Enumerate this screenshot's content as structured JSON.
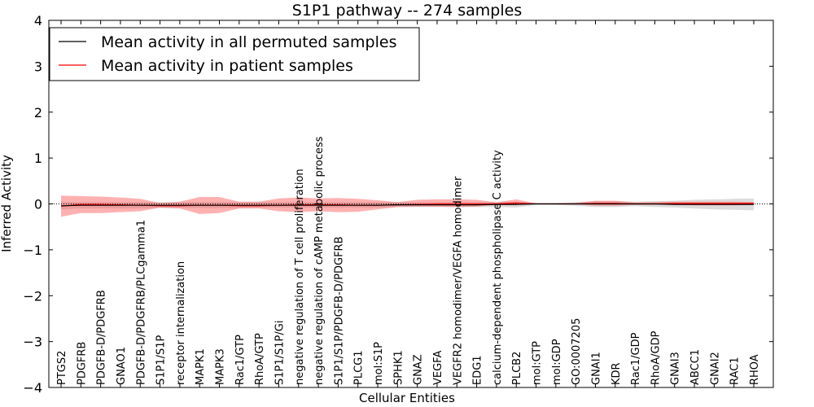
{
  "chart_data": {
    "type": "line",
    "title": "S1P1 pathway -- 274 samples",
    "xlabel": "Cellular Entities",
    "ylabel": "Inferred Activity",
    "ylim": [
      -4,
      4
    ],
    "yticks": [
      -4,
      -3,
      -2,
      -1,
      0,
      1,
      2,
      3,
      4
    ],
    "ytick_labels": [
      "−4",
      "−3",
      "−2",
      "−1",
      "0",
      "1",
      "2",
      "3",
      "4"
    ],
    "legend_position": "top-left",
    "categories": [
      "PTGS2",
      "PDGFRB",
      "PDGFB-D/PDGFRB",
      "GNAO1",
      "PDGFB-D/PDGFRB/PLCgamma1",
      "S1P1/S1P",
      "receptor internalization",
      "MAPK1",
      "MAPK3",
      "Rac1/GTP",
      "RhoA/GTP",
      "S1P1/S1P/Gi",
      "negative regulation of T cell proliferation",
      "negative regulation of cAMP metabolic process",
      "S1P1/S1P/PDGFB-D/PDGFRB",
      "PLCG1",
      "mol:S1P",
      "SPHK1",
      "GNAZ",
      "VEGFA",
      "VEGFR2 homodimer/VEGFA homodimer",
      "EDG1",
      "calcium-dependent phospholipase C activity",
      "PLCB2",
      "mol:GTP",
      "mol:GDP",
      "GO:0007205",
      "GNAI1",
      "KDR",
      "Rac1/GDP",
      "RhoA/GDP",
      "GNAI3",
      "ABCC1",
      "GNAI2",
      "RAC1",
      "RHOA"
    ],
    "series": [
      {
        "name": "Mean activity in all permuted samples",
        "color": "#000000",
        "values": [
          -0.04,
          -0.03,
          -0.03,
          -0.03,
          -0.03,
          -0.03,
          -0.03,
          -0.03,
          -0.03,
          -0.03,
          -0.03,
          -0.03,
          -0.03,
          -0.03,
          -0.03,
          -0.03,
          -0.03,
          -0.02,
          -0.02,
          -0.02,
          -0.02,
          -0.02,
          -0.01,
          -0.01,
          0,
          0,
          0,
          0,
          0,
          0,
          0,
          -0.01,
          -0.01,
          -0.01,
          -0.01,
          -0.01
        ],
        "band_low": [
          -0.12,
          -0.1,
          -0.1,
          -0.1,
          -0.1,
          -0.09,
          -0.09,
          -0.09,
          -0.09,
          -0.09,
          -0.08,
          -0.08,
          -0.08,
          -0.08,
          -0.08,
          -0.08,
          -0.08,
          -0.07,
          -0.07,
          -0.07,
          -0.07,
          -0.07,
          -0.07,
          -0.08,
          -0.02,
          -0.02,
          -0.04,
          -0.07,
          -0.07,
          -0.05,
          -0.07,
          -0.08,
          -0.1,
          -0.12,
          -0.13,
          -0.14
        ],
        "band_high": [
          0.05,
          0.04,
          0.04,
          0.04,
          0.04,
          0.04,
          0.04,
          0.04,
          0.04,
          0.04,
          0.04,
          0.04,
          0.04,
          0.04,
          0.04,
          0.04,
          0.04,
          0.04,
          0.04,
          0.04,
          0.04,
          0.04,
          0.05,
          0.05,
          0.02,
          0.02,
          0.04,
          0.06,
          0.06,
          0.05,
          0.06,
          0.07,
          0.09,
          0.1,
          0.11,
          0.12
        ]
      },
      {
        "name": "Mean activity in patient samples",
        "color": "#ff0000",
        "values": [
          -0.05,
          -0.01,
          -0.01,
          -0.02,
          -0.03,
          -0.04,
          -0.04,
          -0.03,
          -0.03,
          -0.04,
          -0.04,
          -0.03,
          -0.02,
          -0.02,
          -0.02,
          -0.03,
          -0.03,
          -0.02,
          -0.01,
          0,
          0,
          0,
          0,
          0.02,
          0,
          0,
          0,
          0.01,
          0.01,
          0,
          0,
          0.01,
          0.01,
          0.01,
          0.01,
          0.01
        ],
        "band_low": [
          -0.28,
          -0.2,
          -0.2,
          -0.18,
          -0.16,
          -0.08,
          -0.1,
          -0.22,
          -0.2,
          -0.1,
          -0.1,
          -0.16,
          -0.18,
          -0.16,
          -0.18,
          -0.17,
          -0.12,
          -0.07,
          -0.06,
          -0.06,
          -0.07,
          -0.06,
          -0.02,
          -0.03,
          0,
          0,
          -0.01,
          -0.04,
          -0.04,
          -0.02,
          -0.02,
          -0.02,
          -0.03,
          -0.03,
          -0.03,
          -0.02
        ],
        "band_high": [
          0.18,
          0.17,
          0.16,
          0.14,
          0.11,
          0.02,
          0.05,
          0.15,
          0.15,
          0.05,
          0.05,
          0.12,
          0.14,
          0.12,
          0.13,
          0.11,
          0.08,
          0.04,
          0.09,
          0.1,
          0.1,
          0.09,
          0.03,
          0.1,
          0.01,
          0.01,
          0.02,
          0.07,
          0.07,
          0.03,
          0.04,
          0.05,
          0.05,
          0.05,
          0.05,
          0.04
        ]
      }
    ]
  }
}
